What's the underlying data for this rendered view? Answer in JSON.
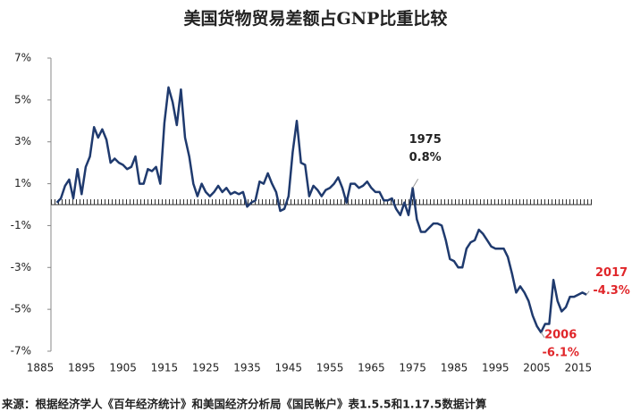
{
  "chart_data": {
    "type": "line",
    "title": "美国货物贸易差额占GNP比重比较",
    "source": "来源：根据经济学人《百年经济统计》和美国经济分析局《国民帐户》表1.5.5和1.17.5数据计算",
    "x": [
      1889,
      1890,
      1891,
      1892,
      1893,
      1894,
      1895,
      1896,
      1897,
      1898,
      1899,
      1900,
      1901,
      1902,
      1903,
      1904,
      1905,
      1906,
      1907,
      1908,
      1909,
      1910,
      1911,
      1912,
      1913,
      1914,
      1915,
      1916,
      1917,
      1918,
      1919,
      1920,
      1921,
      1922,
      1923,
      1924,
      1925,
      1926,
      1927,
      1928,
      1929,
      1930,
      1931,
      1932,
      1933,
      1934,
      1935,
      1936,
      1937,
      1938,
      1939,
      1940,
      1941,
      1942,
      1943,
      1944,
      1945,
      1946,
      1947,
      1948,
      1949,
      1950,
      1951,
      1952,
      1953,
      1954,
      1955,
      1956,
      1957,
      1958,
      1959,
      1960,
      1961,
      1962,
      1963,
      1964,
      1965,
      1966,
      1967,
      1968,
      1969,
      1970,
      1971,
      1972,
      1973,
      1974,
      1975,
      1976,
      1977,
      1978,
      1979,
      1980,
      1981,
      1982,
      1983,
      1984,
      1985,
      1986,
      1987,
      1988,
      1989,
      1990,
      1991,
      1992,
      1993,
      1994,
      1995,
      1996,
      1997,
      1998,
      1999,
      2000,
      2001,
      2002,
      2003,
      2004,
      2005,
      2006,
      2007,
      2008,
      2009,
      2010,
      2011,
      2012,
      2013,
      2014,
      2015,
      2016,
      2017
    ],
    "series": [
      {
        "color": "#1f3a6e",
        "values": [
          0.1,
          0.3,
          0.9,
          1.2,
          0.3,
          1.7,
          0.5,
          1.8,
          2.3,
          3.7,
          3.2,
          3.6,
          3.1,
          2.0,
          2.2,
          2.0,
          1.9,
          1.7,
          1.8,
          2.3,
          1.0,
          1.0,
          1.7,
          1.6,
          1.8,
          1.0,
          3.9,
          5.6,
          4.9,
          3.8,
          5.5,
          3.2,
          2.3,
          1.0,
          0.4,
          1.0,
          0.6,
          0.4,
          0.6,
          0.9,
          0.6,
          0.8,
          0.5,
          0.6,
          0.5,
          0.6,
          -0.1,
          0.1,
          0.2,
          1.1,
          1.0,
          1.5,
          1.0,
          0.6,
          -0.3,
          -0.2,
          0.4,
          2.5,
          4.0,
          2.0,
          1.9,
          0.4,
          0.9,
          0.7,
          0.4,
          0.7,
          0.8,
          1.0,
          1.3,
          0.8,
          0.1,
          1.0,
          1.0,
          0.8,
          0.9,
          1.1,
          0.8,
          0.6,
          0.6,
          0.2,
          0.2,
          0.3,
          -0.2,
          -0.5,
          0.1,
          -0.5,
          0.8,
          -0.7,
          -1.3,
          -1.3,
          -1.1,
          -0.9,
          -0.9,
          -1.0,
          -1.7,
          -2.6,
          -2.7,
          -3.0,
          -3.0,
          -2.1,
          -1.8,
          -1.7,
          -1.2,
          -1.4,
          -1.7,
          -2.0,
          -2.1,
          -2.1,
          -2.1,
          -2.5,
          -3.3,
          -4.2,
          -3.9,
          -4.2,
          -4.6,
          -5.3,
          -5.8,
          -6.1,
          -5.7,
          -5.7,
          -3.6,
          -4.6,
          -5.1,
          -4.9,
          -4.4,
          -4.4,
          -4.3,
          -4.2,
          -4.3
        ]
      }
    ],
    "xlim": [
      1885,
      2020
    ],
    "xticks": [
      1885,
      1895,
      1905,
      1915,
      1925,
      1935,
      1945,
      1955,
      1965,
      1975,
      1985,
      1995,
      2005,
      2015
    ],
    "ylim": [
      -7,
      7
    ],
    "yticks": [
      {
        "value": -7,
        "label": "-7%"
      },
      {
        "value": -5,
        "label": "-5%"
      },
      {
        "value": -3,
        "label": "-3%"
      },
      {
        "value": -1,
        "label": "-1%"
      },
      {
        "value": 1,
        "label": "1%"
      },
      {
        "value": 3,
        "label": "3%"
      },
      {
        "value": 5,
        "label": "5%"
      },
      {
        "value": 7,
        "label": "7%"
      }
    ],
    "annotations": [
      {
        "x": 1975,
        "y": 0.8,
        "label": "0.8%",
        "color": "#222222"
      },
      {
        "x": 2006,
        "y": -6.1,
        "label": "-6.1%",
        "color": "#e0262a"
      },
      {
        "x": 2017,
        "y": -4.3,
        "label": "-4.3%",
        "color": "#e0262a"
      }
    ]
  }
}
